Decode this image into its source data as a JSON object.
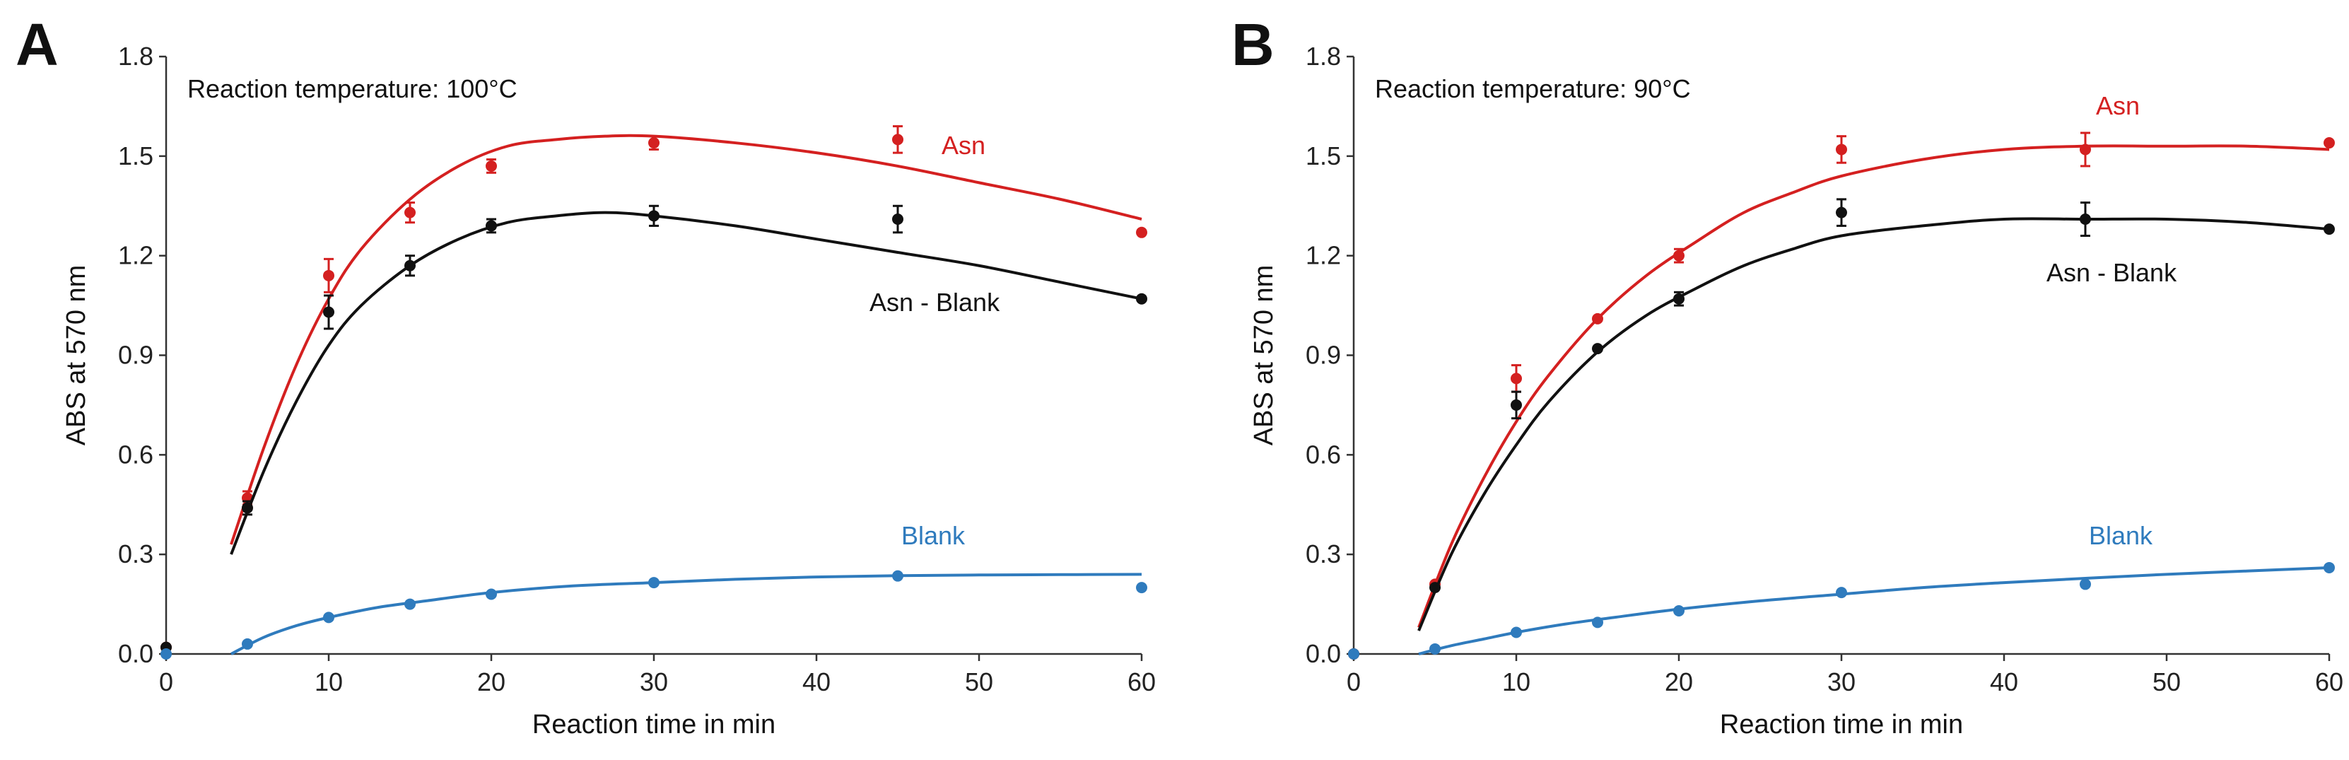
{
  "chart_data": [
    {
      "type": "scatter",
      "panel_label": "A",
      "annotation": "Reaction temperature: 100°C",
      "xlabel": "Reaction time in min",
      "ylabel": "ABS at 570 nm",
      "xlim": [
        0,
        60
      ],
      "ylim": [
        0,
        1.8
      ],
      "xticks": [
        "0",
        "10",
        "20",
        "30",
        "40",
        "50",
        "60"
      ],
      "yticks": [
        "0.0",
        "0.3",
        "0.6",
        "0.9",
        "1.2",
        "1.5",
        "1.8"
      ],
      "series": [
        {
          "name": "Asn",
          "color": "#d42020",
          "points": [
            {
              "x": 0,
              "y": 0.02,
              "err": 0.0
            },
            {
              "x": 5,
              "y": 0.47,
              "err": 0.02
            },
            {
              "x": 10,
              "y": 1.14,
              "err": 0.05
            },
            {
              "x": 15,
              "y": 1.33,
              "err": 0.03
            },
            {
              "x": 20,
              "y": 1.47,
              "err": 0.02
            },
            {
              "x": 30,
              "y": 1.54,
              "err": 0.02
            },
            {
              "x": 45,
              "y": 1.55,
              "err": 0.04
            },
            {
              "x": 60,
              "y": 1.27,
              "err": 0.0
            }
          ],
          "fit": [
            [
              4,
              0.33
            ],
            [
              6,
              0.62
            ],
            [
              8,
              0.87
            ],
            [
              10,
              1.07
            ],
            [
              12,
              1.22
            ],
            [
              15,
              1.37
            ],
            [
              18,
              1.47
            ],
            [
              21,
              1.53
            ],
            [
              24,
              1.55
            ],
            [
              27,
              1.56
            ],
            [
              30,
              1.56
            ],
            [
              35,
              1.54
            ],
            [
              40,
              1.51
            ],
            [
              45,
              1.47
            ],
            [
              50,
              1.42
            ],
            [
              55,
              1.37
            ],
            [
              60,
              1.31
            ]
          ]
        },
        {
          "name": "Asn - Blank",
          "color": "#111111",
          "points": [
            {
              "x": 0,
              "y": 0.02,
              "err": 0.0
            },
            {
              "x": 5,
              "y": 0.44,
              "err": 0.02
            },
            {
              "x": 10,
              "y": 1.03,
              "err": 0.05
            },
            {
              "x": 15,
              "y": 1.17,
              "err": 0.03
            },
            {
              "x": 20,
              "y": 1.29,
              "err": 0.02
            },
            {
              "x": 30,
              "y": 1.32,
              "err": 0.03
            },
            {
              "x": 45,
              "y": 1.31,
              "err": 0.04
            },
            {
              "x": 60,
              "y": 1.07,
              "err": 0.0
            }
          ],
          "fit": [
            [
              4,
              0.3
            ],
            [
              6,
              0.55
            ],
            [
              8,
              0.76
            ],
            [
              10,
              0.93
            ],
            [
              12,
              1.05
            ],
            [
              15,
              1.17
            ],
            [
              18,
              1.25
            ],
            [
              21,
              1.3
            ],
            [
              24,
              1.32
            ],
            [
              27,
              1.33
            ],
            [
              30,
              1.32
            ],
            [
              35,
              1.29
            ],
            [
              40,
              1.25
            ],
            [
              45,
              1.21
            ],
            [
              50,
              1.17
            ],
            [
              55,
              1.12
            ],
            [
              60,
              1.07
            ]
          ]
        },
        {
          "name": "Blank",
          "color": "#2f7bbd",
          "points": [
            {
              "x": 0,
              "y": 0.0,
              "err": 0.0
            },
            {
              "x": 5,
              "y": 0.03,
              "err": 0.0
            },
            {
              "x": 10,
              "y": 0.11,
              "err": 0.0
            },
            {
              "x": 15,
              "y": 0.15,
              "err": 0.0
            },
            {
              "x": 20,
              "y": 0.18,
              "err": 0.0
            },
            {
              "x": 30,
              "y": 0.215,
              "err": 0.0
            },
            {
              "x": 45,
              "y": 0.235,
              "err": 0.0
            },
            {
              "x": 60,
              "y": 0.2,
              "err": 0.0
            }
          ],
          "fit": [
            [
              4,
              0.0
            ],
            [
              6,
              0.05
            ],
            [
              8,
              0.085
            ],
            [
              10,
              0.11
            ],
            [
              13,
              0.14
            ],
            [
              16,
              0.16
            ],
            [
              20,
              0.185
            ],
            [
              25,
              0.205
            ],
            [
              30,
              0.215
            ],
            [
              35,
              0.225
            ],
            [
              40,
              0.232
            ],
            [
              45,
              0.236
            ],
            [
              50,
              0.238
            ],
            [
              55,
              0.239
            ],
            [
              60,
              0.24
            ]
          ]
        }
      ]
    },
    {
      "type": "scatter",
      "panel_label": "B",
      "annotation": "Reaction temperature: 90°C",
      "xlabel": "Reaction time in min",
      "ylabel": "ABS at 570 nm",
      "xlim": [
        0,
        60
      ],
      "ylim": [
        0,
        1.8
      ],
      "xticks": [
        "0",
        "10",
        "20",
        "30",
        "40",
        "50",
        "60"
      ],
      "yticks": [
        "0.0",
        "0.3",
        "0.6",
        "0.9",
        "1.2",
        "1.5",
        "1.8"
      ],
      "series": [
        {
          "name": "Asn",
          "color": "#d42020",
          "points": [
            {
              "x": 0,
              "y": 0.0,
              "err": 0.0
            },
            {
              "x": 5,
              "y": 0.21,
              "err": 0.0
            },
            {
              "x": 10,
              "y": 0.83,
              "err": 0.04
            },
            {
              "x": 15,
              "y": 1.01,
              "err": 0.0
            },
            {
              "x": 20,
              "y": 1.2,
              "err": 0.02
            },
            {
              "x": 30,
              "y": 1.52,
              "err": 0.04
            },
            {
              "x": 45,
              "y": 1.52,
              "err": 0.05
            },
            {
              "x": 60,
              "y": 1.54,
              "err": 0.0
            }
          ],
          "fit": [
            [
              4,
              0.08
            ],
            [
              6,
              0.33
            ],
            [
              8,
              0.53
            ],
            [
              10,
              0.7
            ],
            [
              12,
              0.84
            ],
            [
              15,
              1.01
            ],
            [
              18,
              1.14
            ],
            [
              21,
              1.24
            ],
            [
              24,
              1.33
            ],
            [
              27,
              1.39
            ],
            [
              30,
              1.44
            ],
            [
              35,
              1.49
            ],
            [
              40,
              1.52
            ],
            [
              45,
              1.53
            ],
            [
              50,
              1.53
            ],
            [
              55,
              1.53
            ],
            [
              60,
              1.52
            ]
          ]
        },
        {
          "name": "Asn - Blank",
          "color": "#111111",
          "points": [
            {
              "x": 0,
              "y": 0.0,
              "err": 0.0
            },
            {
              "x": 5,
              "y": 0.2,
              "err": 0.0
            },
            {
              "x": 10,
              "y": 0.75,
              "err": 0.04
            },
            {
              "x": 15,
              "y": 0.92,
              "err": 0.0
            },
            {
              "x": 20,
              "y": 1.07,
              "err": 0.02
            },
            {
              "x": 30,
              "y": 1.33,
              "err": 0.04
            },
            {
              "x": 45,
              "y": 1.31,
              "err": 0.05
            },
            {
              "x": 60,
              "y": 1.28,
              "err": 0.0
            }
          ],
          "fit": [
            [
              4,
              0.07
            ],
            [
              6,
              0.3
            ],
            [
              8,
              0.48
            ],
            [
              10,
              0.63
            ],
            [
              12,
              0.76
            ],
            [
              15,
              0.91
            ],
            [
              18,
              1.02
            ],
            [
              21,
              1.1
            ],
            [
              24,
              1.17
            ],
            [
              27,
              1.22
            ],
            [
              30,
              1.26
            ],
            [
              35,
              1.29
            ],
            [
              40,
              1.31
            ],
            [
              45,
              1.31
            ],
            [
              50,
              1.31
            ],
            [
              55,
              1.3
            ],
            [
              60,
              1.28
            ]
          ]
        },
        {
          "name": "Blank",
          "color": "#2f7bbd",
          "points": [
            {
              "x": 0,
              "y": 0.0,
              "err": 0.0
            },
            {
              "x": 5,
              "y": 0.015,
              "err": 0.0
            },
            {
              "x": 10,
              "y": 0.065,
              "err": 0.0
            },
            {
              "x": 15,
              "y": 0.095,
              "err": 0.0
            },
            {
              "x": 20,
              "y": 0.13,
              "err": 0.0
            },
            {
              "x": 30,
              "y": 0.185,
              "err": 0.0
            },
            {
              "x": 45,
              "y": 0.21,
              "err": 0.0
            },
            {
              "x": 60,
              "y": 0.26,
              "err": 0.0
            }
          ],
          "fit": [
            [
              4,
              0.0
            ],
            [
              6,
              0.025
            ],
            [
              8,
              0.045
            ],
            [
              10,
              0.065
            ],
            [
              13,
              0.09
            ],
            [
              16,
              0.11
            ],
            [
              20,
              0.135
            ],
            [
              25,
              0.16
            ],
            [
              30,
              0.18
            ],
            [
              35,
              0.2
            ],
            [
              40,
              0.215
            ],
            [
              45,
              0.228
            ],
            [
              50,
              0.24
            ],
            [
              55,
              0.25
            ],
            [
              60,
              0.26
            ]
          ]
        }
      ]
    }
  ]
}
